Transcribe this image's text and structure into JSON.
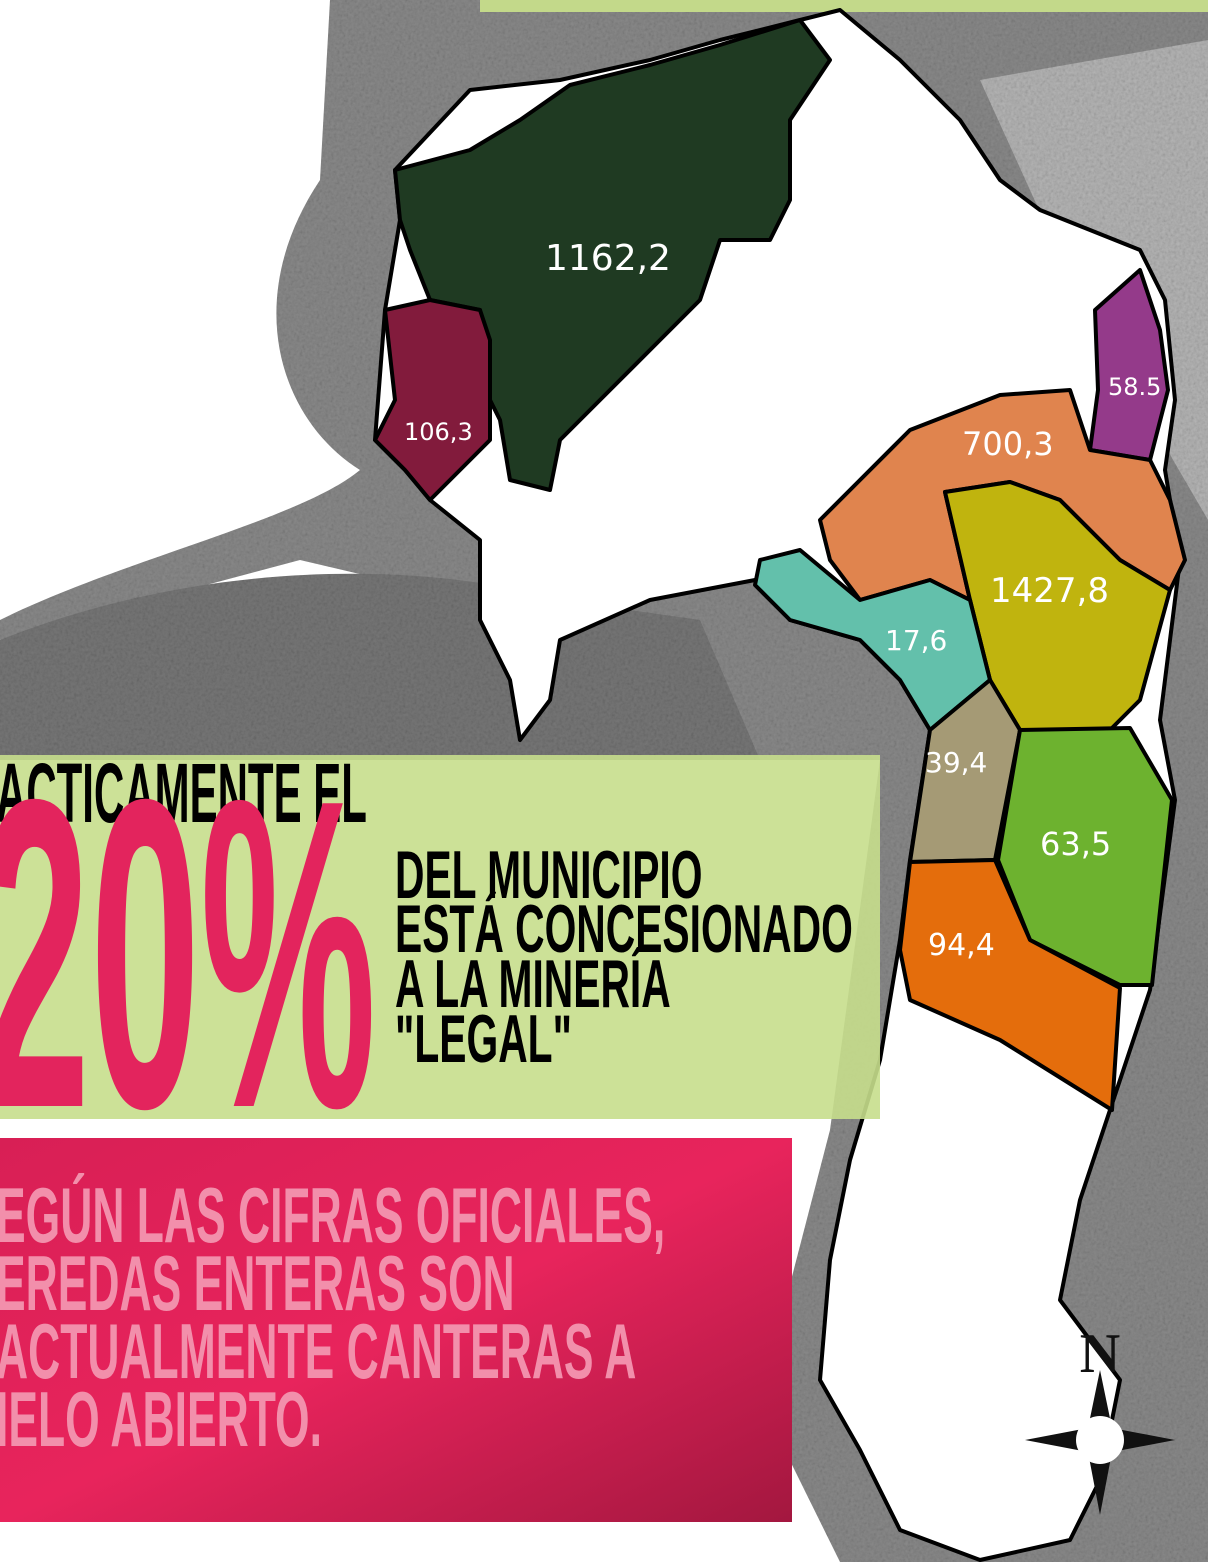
{
  "map": {
    "regions": [
      {
        "label": "1162,2"
      },
      {
        "label": "106,3"
      },
      {
        "label": "58.5"
      },
      {
        "label": "700,3"
      },
      {
        "label": "1427,8"
      },
      {
        "label": "17,6"
      },
      {
        "label": "39,4"
      },
      {
        "label": "63,5"
      },
      {
        "label": "94,4"
      }
    ],
    "compass": "N"
  },
  "callout": {
    "lead": "ACTICAMENTE EL",
    "figure": "20%",
    "lines": [
      "DEL MUNICIPIO",
      "ESTÁ CONCESIONADO",
      "A LA MINERÍA",
      "\"LEGAL\""
    ]
  },
  "note": {
    "lines": [
      "EGÚN LAS CIFRAS OFICIALES,",
      "EREDAS ENTERAS SON",
      "ACTUALMENTE CANTERAS A",
      "IELO ABIERTO."
    ]
  }
}
